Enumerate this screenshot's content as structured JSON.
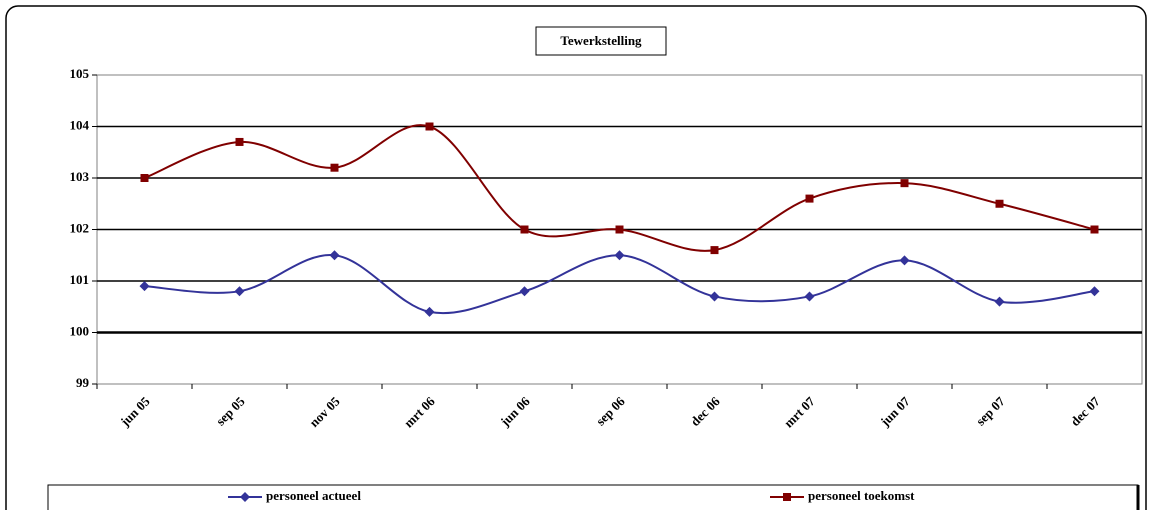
{
  "chart_data": {
    "type": "line",
    "title": "Tewerkstelling",
    "categories": [
      "jun 05",
      "sep 05",
      "nov 05",
      "mrt 06",
      "jun 06",
      "sep 06",
      "dec 06",
      "mrt 07",
      "jun 07",
      "sep 07",
      "dec 07"
    ],
    "series": [
      {
        "name": "personeel actueel",
        "color": "#333399",
        "marker": "diamond",
        "values": [
          100.9,
          100.8,
          101.5,
          100.4,
          100.8,
          101.5,
          100.7,
          100.7,
          101.4,
          100.6,
          100.8
        ]
      },
      {
        "name": "personeel toekomst",
        "color": "#800000",
        "marker": "square",
        "values": [
          103,
          103.7,
          103.2,
          104,
          102,
          102,
          101.6,
          102.6,
          102.9,
          102.5,
          102
        ]
      }
    ],
    "ylim": [
      99,
      105
    ],
    "yticks": [
      99,
      100,
      101,
      102,
      103,
      104,
      105
    ],
    "grid": true,
    "smooth": true,
    "legend": "bottom"
  }
}
